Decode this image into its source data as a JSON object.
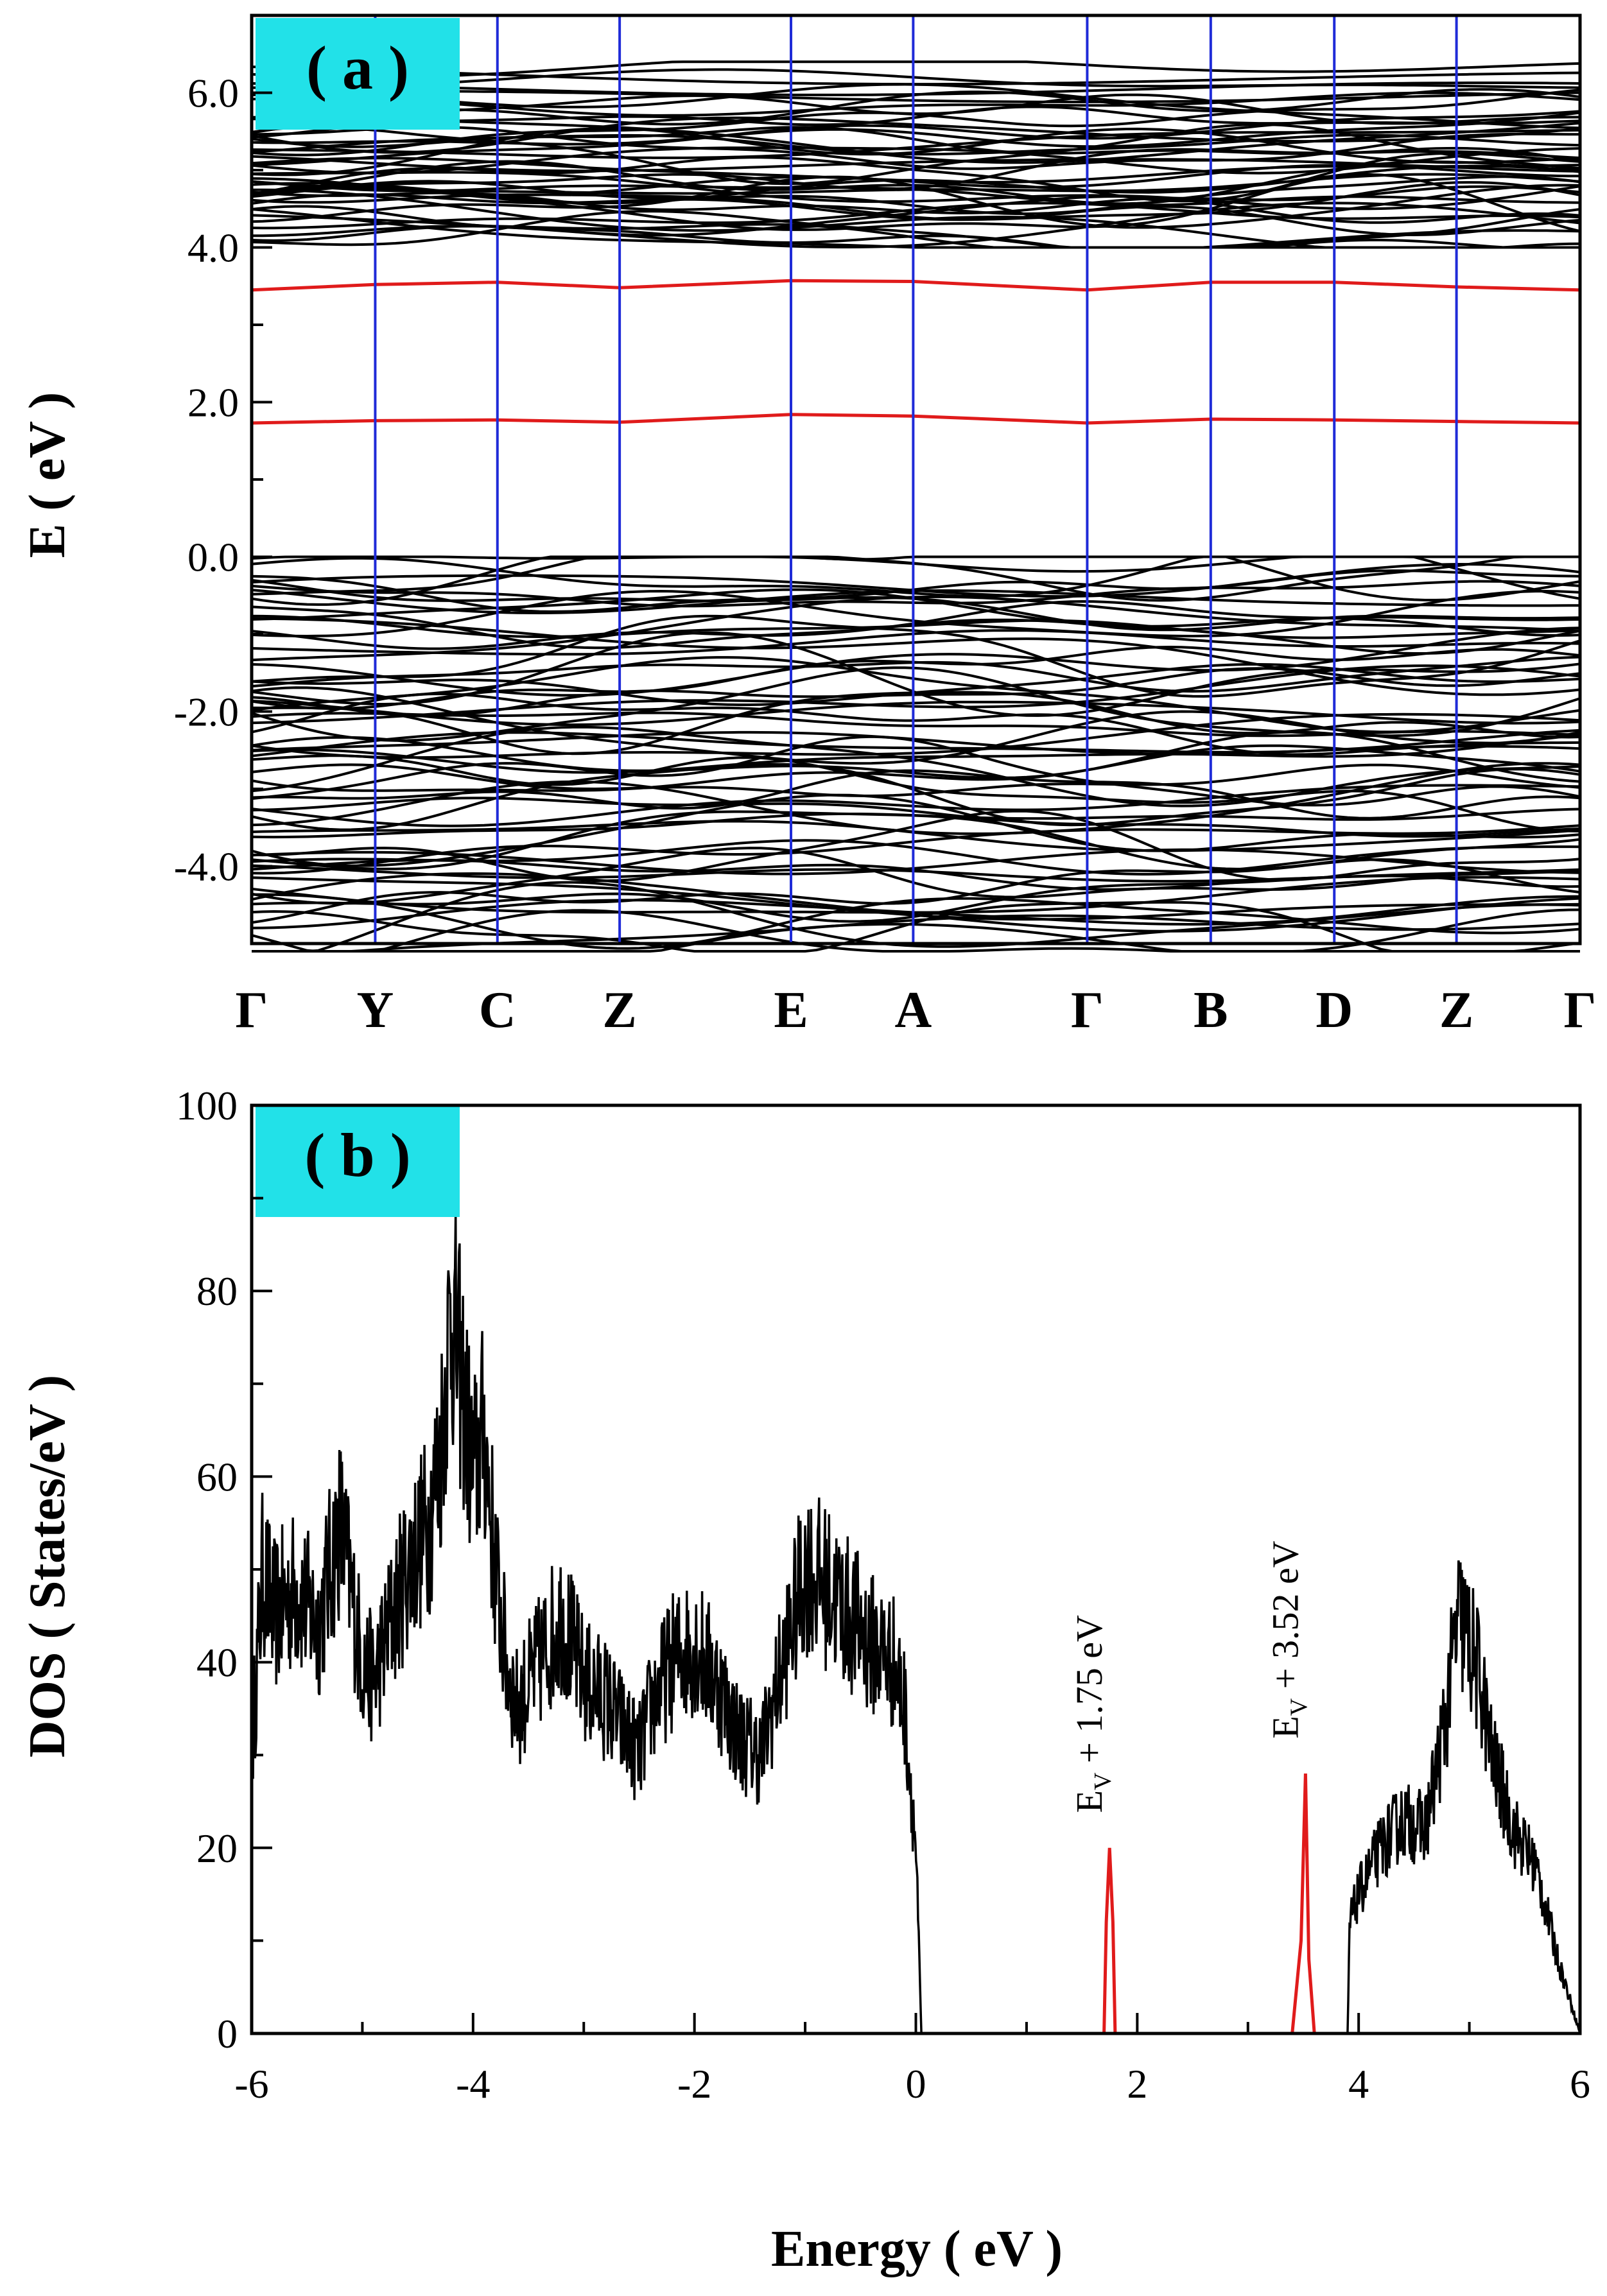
{
  "chart_data": [
    {
      "type": "line",
      "panel_label": "( a )",
      "ylabel": "E ( eV )",
      "ylim": [
        -5.0,
        7.0
      ],
      "yticks": [
        -4.0,
        -2.0,
        0.0,
        2.0,
        4.0,
        6.0
      ],
      "ytick_labels": [
        "-4.0",
        "-2.0",
        "0.0",
        "2.0",
        "4.0",
        "6.0"
      ],
      "kpath_labels": [
        "Γ",
        "Y",
        "C",
        "Z",
        "E",
        "A",
        "Γ",
        "B",
        "D",
        "Z",
        "Γ"
      ],
      "kpath_positions": [
        0,
        0.093,
        0.185,
        0.277,
        0.406,
        0.498,
        0.629,
        0.722,
        0.815,
        0.907,
        1.0
      ],
      "defect_bands": [
        {
          "name": "upper defect band",
          "color": "#e01b1b",
          "x": [
            0,
            0.093,
            0.185,
            0.277,
            0.406,
            0.498,
            0.629,
            0.722,
            0.815,
            0.907,
            1.0
          ],
          "y": [
            3.45,
            3.52,
            3.55,
            3.48,
            3.57,
            3.56,
            3.45,
            3.55,
            3.55,
            3.49,
            3.45
          ]
        },
        {
          "name": "lower defect band",
          "color": "#e01b1b",
          "x": [
            0,
            0.093,
            0.185,
            0.277,
            0.406,
            0.498,
            0.629,
            0.722,
            0.815,
            0.907,
            1.0
          ],
          "y": [
            1.73,
            1.76,
            1.77,
            1.74,
            1.84,
            1.82,
            1.73,
            1.78,
            1.77,
            1.75,
            1.73
          ]
        }
      ],
      "valence_band_range": [
        -5.0,
        0.0
      ],
      "conduction_band_range": [
        4.0,
        6.4
      ],
      "colors": {
        "bands": "#000000",
        "defect": "#e01b1b",
        "high_symmetry_lines": "#1f2bd8",
        "label_box": "#22e1e8"
      }
    },
    {
      "type": "line",
      "panel_label": "( b )",
      "xlabel": "Energy ( eV )",
      "ylabel": "DOS ( States/eV )",
      "xlim": [
        -6,
        6
      ],
      "ylim": [
        0,
        100
      ],
      "xticks": [
        -6,
        -4,
        -2,
        0,
        2,
        4,
        6
      ],
      "yticks": [
        0,
        20,
        40,
        60,
        80,
        100
      ],
      "series": [
        {
          "color": "#000000",
          "x": [
            -6.0,
            -5.9,
            -5.8,
            -5.6,
            -5.4,
            -5.2,
            -5.0,
            -4.9,
            -4.8,
            -4.6,
            -4.4,
            -4.3,
            -4.2,
            -4.1,
            -4.0,
            -3.9,
            -3.8,
            -3.7,
            -3.6,
            -3.4,
            -3.2,
            -3.0,
            -2.8,
            -2.6,
            -2.5,
            -2.4,
            -2.2,
            -2.0,
            -1.8,
            -1.6,
            -1.4,
            -1.2,
            -1.0,
            -0.8,
            -0.6,
            -0.4,
            -0.2,
            -0.1,
            0.0,
            0.05
          ],
          "y": [
            30,
            50,
            45,
            48,
            44,
            55,
            40,
            38,
            42,
            50,
            55,
            62,
            78,
            70,
            60,
            65,
            50,
            40,
            35,
            40,
            45,
            38,
            36,
            32,
            30,
            35,
            40,
            42,
            38,
            32,
            30,
            40,
            50,
            48,
            45,
            42,
            40,
            35,
            20,
            0
          ]
        },
        {
          "color": "#e01b1b",
          "x": [
            1.0,
            1.7,
            1.72,
            1.75,
            1.78,
            1.8,
            3.4,
            3.48,
            3.52,
            3.55,
            3.6
          ],
          "y": [
            0,
            0,
            12,
            20,
            12,
            0,
            0,
            10,
            28,
            8,
            0
          ]
        },
        {
          "color": "#000000",
          "x": [
            3.9,
            3.92,
            4.0,
            4.2,
            4.4,
            4.6,
            4.7,
            4.8,
            4.9,
            5.0,
            5.1,
            5.2,
            5.4,
            5.6,
            5.8,
            5.9,
            6.0
          ],
          "y": [
            0,
            12,
            15,
            20,
            23,
            22,
            28,
            35,
            45,
            42,
            38,
            30,
            22,
            18,
            8,
            4,
            0
          ]
        }
      ],
      "annotations": [
        {
          "text": "E",
          "sub": "V",
          "rest": " + 1.75 eV",
          "x": 1.75,
          "y": 21
        },
        {
          "text": "E",
          "sub": "V",
          "rest": " + 3.52 eV",
          "x": 3.52,
          "y": 29
        }
      ],
      "colors": {
        "label_box": "#22e1e8"
      }
    }
  ]
}
